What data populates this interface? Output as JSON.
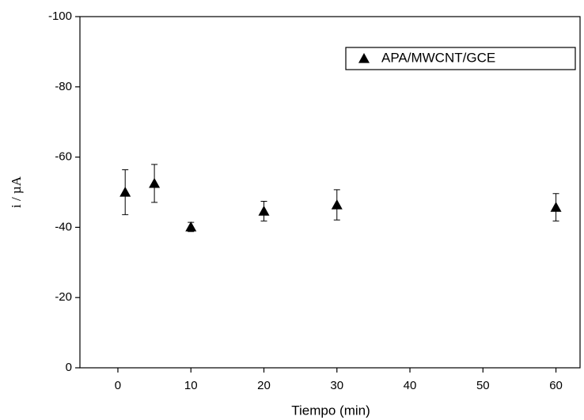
{
  "chart_data": {
    "type": "scatter",
    "x_label": "Tiempo (min)",
    "y_label": "i  /  µA",
    "series": [
      {
        "name": "APA/MWCNT/GCE",
        "color": "#000000",
        "x": [
          1,
          5,
          10,
          20,
          30,
          60
        ],
        "values": [
          -50,
          -52.5,
          -40.1,
          -44.6,
          -46.4,
          -45.7
        ],
        "errors": [
          6.4,
          5.4,
          1.3,
          2.8,
          4.3,
          3.9
        ]
      }
    ],
    "xlim": [
      -5.2,
      63.3
    ],
    "xticks": [
      0,
      10,
      20,
      30,
      40,
      50,
      60
    ],
    "ylim": [
      0,
      -100
    ],
    "yticks": [
      -100,
      -80,
      -60,
      -40,
      -20,
      0
    ],
    "legend": "upper right",
    "grid": false
  }
}
